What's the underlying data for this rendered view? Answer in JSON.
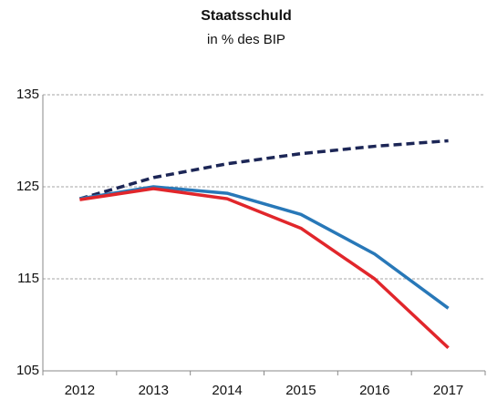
{
  "chart_data": {
    "type": "line",
    "title": "Staatsschuld",
    "subtitle": "in % des BIP",
    "categories": [
      "2012",
      "2013",
      "2014",
      "2015",
      "2016",
      "2017"
    ],
    "series": [
      {
        "color": "#1c2656",
        "dashed": true,
        "values": [
          123.7,
          126.0,
          127.5,
          128.6,
          129.4,
          130.0
        ]
      },
      {
        "color": "#2878b8",
        "dashed": false,
        "values": [
          123.7,
          125.0,
          124.3,
          122.0,
          117.7,
          111.8
        ]
      },
      {
        "color": "#e1262b",
        "dashed": false,
        "values": [
          123.6,
          124.8,
          123.7,
          120.5,
          115.0,
          107.5
        ]
      }
    ],
    "ylim": [
      105,
      135
    ],
    "yticks": [
      105,
      115,
      125,
      135
    ],
    "grid": true
  }
}
